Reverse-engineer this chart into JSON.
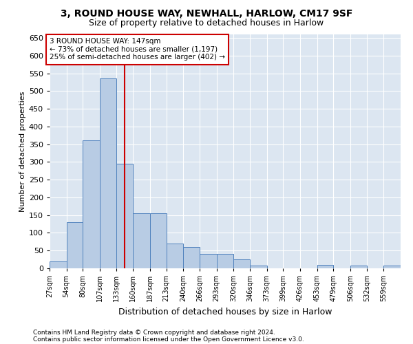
{
  "title1": "3, ROUND HOUSE WAY, NEWHALL, HARLOW, CM17 9SF",
  "title2": "Size of property relative to detached houses in Harlow",
  "xlabel": "Distribution of detached houses by size in Harlow",
  "ylabel": "Number of detached properties",
  "footnote1": "Contains HM Land Registry data © Crown copyright and database right 2024.",
  "footnote2": "Contains public sector information licensed under the Open Government Licence v3.0.",
  "annotation_line1": "3 ROUND HOUSE WAY: 147sqm",
  "annotation_line2": "← 73% of detached houses are smaller (1,197)",
  "annotation_line3": "25% of semi-detached houses are larger (402) →",
  "bar_color": "#b8cce4",
  "bar_edge_color": "#4f81bd",
  "fig_bg_color": "#ffffff",
  "plot_bg_color": "#dce6f1",
  "grid_color": "#ffffff",
  "red_line_color": "#cc0000",
  "annotation_box_edge_color": "#cc0000",
  "bins": [
    27,
    54,
    80,
    107,
    133,
    160,
    187,
    213,
    240,
    266,
    293,
    320,
    346,
    373,
    399,
    426,
    453,
    479,
    506,
    532,
    559,
    586
  ],
  "bin_labels": [
    "27sqm",
    "54sqm",
    "80sqm",
    "107sqm",
    "133sqm",
    "160sqm",
    "187sqm",
    "213sqm",
    "240sqm",
    "266sqm",
    "293sqm",
    "320sqm",
    "346sqm",
    "373sqm",
    "399sqm",
    "426sqm",
    "453sqm",
    "479sqm",
    "506sqm",
    "532sqm",
    "559sqm"
  ],
  "values": [
    20,
    130,
    362,
    535,
    295,
    155,
    155,
    70,
    60,
    40,
    40,
    25,
    8,
    0,
    0,
    0,
    10,
    0,
    8,
    0,
    8
  ],
  "ylim": [
    0,
    660
  ],
  "yticks": [
    0,
    50,
    100,
    150,
    200,
    250,
    300,
    350,
    400,
    450,
    500,
    550,
    600,
    650
  ],
  "property_size": 147,
  "title1_fontsize": 10,
  "title2_fontsize": 9,
  "ylabel_fontsize": 8,
  "xlabel_fontsize": 9,
  "tick_fontsize": 7,
  "footnote_fontsize": 6.5,
  "annotation_fontsize": 7.5
}
